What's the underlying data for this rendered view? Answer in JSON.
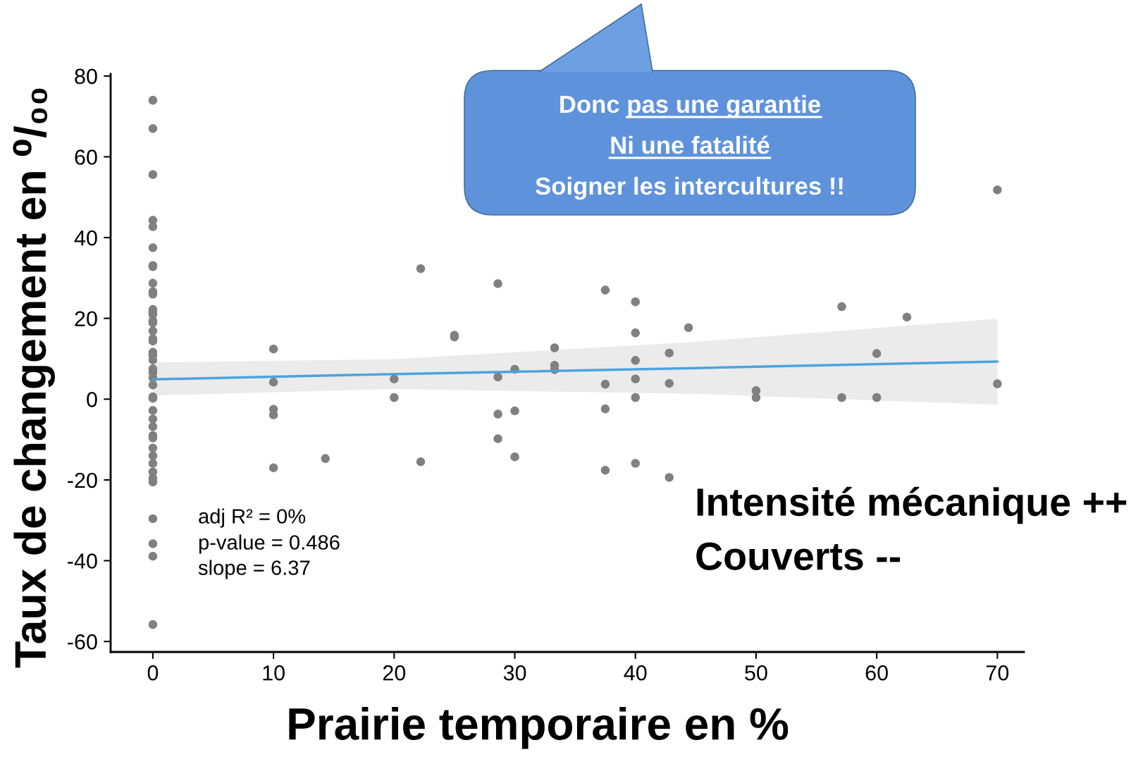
{
  "chart_data": {
    "type": "scatter",
    "xlabel": "Prairie temporaire en %",
    "ylabel": "Taux de changement en ⁰/₀₀",
    "annotations": [
      "Donc pas une garantie",
      "Ni une fatalité",
      "Soigner les intercultures !!",
      "Intensité mécanique ++",
      "Couverts --",
      "adj R² = 0%",
      "p-value = 0.486",
      "slope = 6.37"
    ],
    "xlim": [
      -3.5,
      72.2
    ],
    "ylim": [
      -62.6,
      80.5
    ],
    "xticks": [
      0,
      10,
      20,
      30,
      40,
      50,
      60,
      70
    ],
    "yticks": [
      -60,
      -40,
      -20,
      0,
      20,
      40,
      60,
      80
    ],
    "grid": false,
    "series": [
      {
        "color": "#808080",
        "marker": "circle",
        "x": [
          0,
          0,
          0,
          0,
          0,
          0,
          0,
          0,
          0,
          0,
          0,
          0,
          0,
          0,
          0,
          0,
          0,
          0,
          0,
          0,
          0,
          0,
          0,
          0,
          0,
          0,
          0,
          0,
          0,
          0,
          0,
          0,
          0,
          0,
          0,
          0,
          0,
          0,
          0,
          0,
          0,
          0,
          0,
          10,
          10,
          10,
          10,
          10,
          14.3,
          20,
          20,
          22.2,
          22.2,
          25,
          25,
          28.6,
          28.6,
          28.6,
          28.6,
          30,
          30,
          30,
          33.3,
          33.3,
          33.3,
          37.5,
          37.5,
          37.5,
          37.5,
          40,
          40,
          40,
          40,
          40,
          40,
          42.8,
          42.8,
          42.8,
          44.4,
          50,
          50,
          57.1,
          57.1,
          60,
          60,
          62.5,
          70,
          70
        ],
        "values": [
          74.0,
          67.0,
          55.6,
          44.3,
          42.7,
          37.5,
          33.1,
          32.8,
          28.7,
          26.6,
          26.0,
          22.2,
          21.6,
          21.0,
          19.4,
          18.9,
          16.9,
          15.0,
          14.4,
          11.6,
          10.9,
          9.7,
          7.5,
          6.6,
          5.3,
          3.5,
          0.6,
          0.2,
          -2.8,
          -4.9,
          -6.8,
          -9.0,
          -9.6,
          -12.1,
          -14.0,
          -15.9,
          -18.0,
          -19.6,
          -20.5,
          -29.6,
          -35.8,
          -38.9,
          -55.8,
          12.4,
          4.2,
          -2.5,
          -3.9,
          -17.0,
          -14.7,
          5.0,
          0.4,
          32.3,
          -15.5,
          15.8,
          15.4,
          28.6,
          5.5,
          -3.7,
          -9.8,
          7.4,
          -2.9,
          -14.3,
          12.7,
          8.4,
          7.3,
          27.0,
          3.7,
          -2.4,
          -17.6,
          24.1,
          16.4,
          9.6,
          5.0,
          0.4,
          -15.9,
          11.4,
          3.9,
          -19.4,
          17.7,
          2.1,
          0.4,
          22.9,
          0.4,
          11.3,
          0.4,
          20.3,
          51.8,
          3.8
        ]
      },
      {
        "type": "line",
        "color": "#4aa3df",
        "line_style": "solid",
        "x": [
          0,
          20,
          45,
          70
        ],
        "values": [
          4.9,
          6.2,
          7.7,
          9.3
        ],
        "lower": [
          0.9,
          2.5,
          1.3,
          -1.4
        ],
        "upper": [
          9.1,
          9.9,
          14.2,
          19.9
        ]
      }
    ]
  }
}
